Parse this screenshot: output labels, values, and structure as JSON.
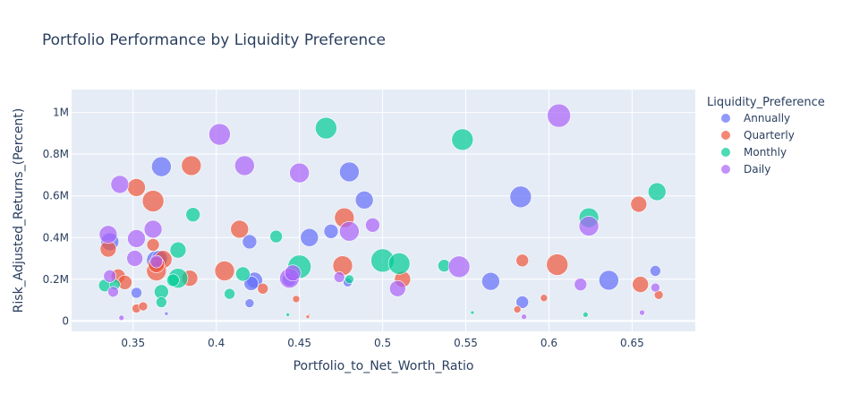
{
  "chart_data": {
    "type": "scatter",
    "title": "Portfolio Performance by Liquidity Preference",
    "xlabel": "Portfolio_to_Net_Worth_Ratio",
    "ylabel": "Risk_Adjusted_Returns_(Percent)",
    "xlim": [
      0.313,
      0.688
    ],
    "ylim": [
      -50000,
      1110000
    ],
    "x_ticks": [
      {
        "value": 0.35,
        "label": "0.35"
      },
      {
        "value": 0.4,
        "label": "0.4"
      },
      {
        "value": 0.45,
        "label": "0.45"
      },
      {
        "value": 0.5,
        "label": "0.5"
      },
      {
        "value": 0.55,
        "label": "0.55"
      },
      {
        "value": 0.6,
        "label": "0.6"
      },
      {
        "value": 0.65,
        "label": "0.65"
      }
    ],
    "y_ticks": [
      {
        "value": 0,
        "label": "0"
      },
      {
        "value": 200000,
        "label": "0.2M"
      },
      {
        "value": 400000,
        "label": "0.4M"
      },
      {
        "value": 600000,
        "label": "0.6M"
      },
      {
        "value": 800000,
        "label": "0.8M"
      },
      {
        "value": 1000000,
        "label": "1M"
      }
    ],
    "grid": true,
    "legend": {
      "title": "Liquidity_Preference",
      "placement": "right"
    },
    "series": [
      {
        "name": "Annually",
        "color": "#636efa",
        "points": [
          [
            0.367,
            740000,
            11
          ],
          [
            0.48,
            715000,
            11
          ],
          [
            0.583,
            595000,
            12
          ],
          [
            0.489,
            580000,
            10
          ],
          [
            0.469,
            430000,
            8
          ],
          [
            0.456,
            400000,
            10
          ],
          [
            0.42,
            380000,
            8
          ],
          [
            0.336,
            380000,
            10
          ],
          [
            0.364,
            290000,
            11
          ],
          [
            0.366,
            300000,
            9
          ],
          [
            0.423,
            195000,
            9
          ],
          [
            0.421,
            180000,
            8
          ],
          [
            0.444,
            200000,
            8
          ],
          [
            0.565,
            190000,
            10
          ],
          [
            0.636,
            195000,
            11
          ],
          [
            0.664,
            240000,
            6
          ],
          [
            0.479,
            185000,
            5
          ],
          [
            0.584,
            90000,
            7
          ],
          [
            0.42,
            85000,
            5
          ],
          [
            0.37,
            35000,
            2
          ],
          [
            0.352,
            135000,
            6
          ]
        ]
      },
      {
        "name": "Quarterly",
        "color": "#EF553B",
        "points": [
          [
            0.385,
            745000,
            11
          ],
          [
            0.352,
            640000,
            10
          ],
          [
            0.362,
            575000,
            12
          ],
          [
            0.477,
            495000,
            11
          ],
          [
            0.414,
            440000,
            10
          ],
          [
            0.362,
            365000,
            7
          ],
          [
            0.335,
            345000,
            9
          ],
          [
            0.368,
            295000,
            10
          ],
          [
            0.364,
            240000,
            11
          ],
          [
            0.364,
            270000,
            9
          ],
          [
            0.405,
            240000,
            11
          ],
          [
            0.476,
            265000,
            11
          ],
          [
            0.584,
            290000,
            7
          ],
          [
            0.605,
            270000,
            12
          ],
          [
            0.654,
            560000,
            9
          ],
          [
            0.384,
            205000,
            9
          ],
          [
            0.341,
            215000,
            8
          ],
          [
            0.345,
            185000,
            8
          ],
          [
            0.512,
            200000,
            9
          ],
          [
            0.655,
            175000,
            9
          ],
          [
            0.428,
            155000,
            6
          ],
          [
            0.448,
            105000,
            4
          ],
          [
            0.597,
            110000,
            4
          ],
          [
            0.666,
            125000,
            5
          ],
          [
            0.352,
            60000,
            5
          ],
          [
            0.356,
            70000,
            5
          ],
          [
            0.581,
            55000,
            4
          ],
          [
            0.455,
            20000,
            2
          ],
          [
            0.456,
            30000,
            1
          ]
        ]
      },
      {
        "name": "Monthly",
        "color": "#00cc96",
        "points": [
          [
            0.466,
            925000,
            12
          ],
          [
            0.548,
            870000,
            12
          ],
          [
            0.624,
            495000,
            11
          ],
          [
            0.665,
            620000,
            10
          ],
          [
            0.386,
            510000,
            8
          ],
          [
            0.377,
            340000,
            9
          ],
          [
            0.436,
            405000,
            7
          ],
          [
            0.5,
            290000,
            13
          ],
          [
            0.51,
            275000,
            12
          ],
          [
            0.45,
            260000,
            13
          ],
          [
            0.537,
            265000,
            7
          ],
          [
            0.377,
            205000,
            11
          ],
          [
            0.416,
            225000,
            8
          ],
          [
            0.374,
            195000,
            7
          ],
          [
            0.48,
            200000,
            5
          ],
          [
            0.333,
            170000,
            7
          ],
          [
            0.339,
            175000,
            6
          ],
          [
            0.367,
            140000,
            8
          ],
          [
            0.408,
            130000,
            6
          ],
          [
            0.367,
            90000,
            6
          ],
          [
            0.443,
            30000,
            2
          ],
          [
            0.554,
            40000,
            2
          ],
          [
            0.622,
            30000,
            3
          ]
        ]
      },
      {
        "name": "Daily",
        "color": "#ab63fa",
        "points": [
          [
            0.606,
            985000,
            13
          ],
          [
            0.402,
            895000,
            12
          ],
          [
            0.417,
            745000,
            11
          ],
          [
            0.45,
            710000,
            11
          ],
          [
            0.342,
            655000,
            10
          ],
          [
            0.362,
            440000,
            10
          ],
          [
            0.48,
            430000,
            11
          ],
          [
            0.494,
            460000,
            8
          ],
          [
            0.335,
            415000,
            10
          ],
          [
            0.352,
            395000,
            10
          ],
          [
            0.624,
            455000,
            11
          ],
          [
            0.546,
            260000,
            12
          ],
          [
            0.444,
            205000,
            11
          ],
          [
            0.446,
            230000,
            9
          ],
          [
            0.351,
            300000,
            9
          ],
          [
            0.364,
            285000,
            7
          ],
          [
            0.336,
            215000,
            7
          ],
          [
            0.474,
            210000,
            6
          ],
          [
            0.509,
            155000,
            9
          ],
          [
            0.619,
            175000,
            7
          ],
          [
            0.664,
            160000,
            5
          ],
          [
            0.338,
            140000,
            6
          ],
          [
            0.343,
            15000,
            3
          ],
          [
            0.585,
            20000,
            3
          ],
          [
            0.656,
            40000,
            3
          ]
        ]
      }
    ]
  }
}
